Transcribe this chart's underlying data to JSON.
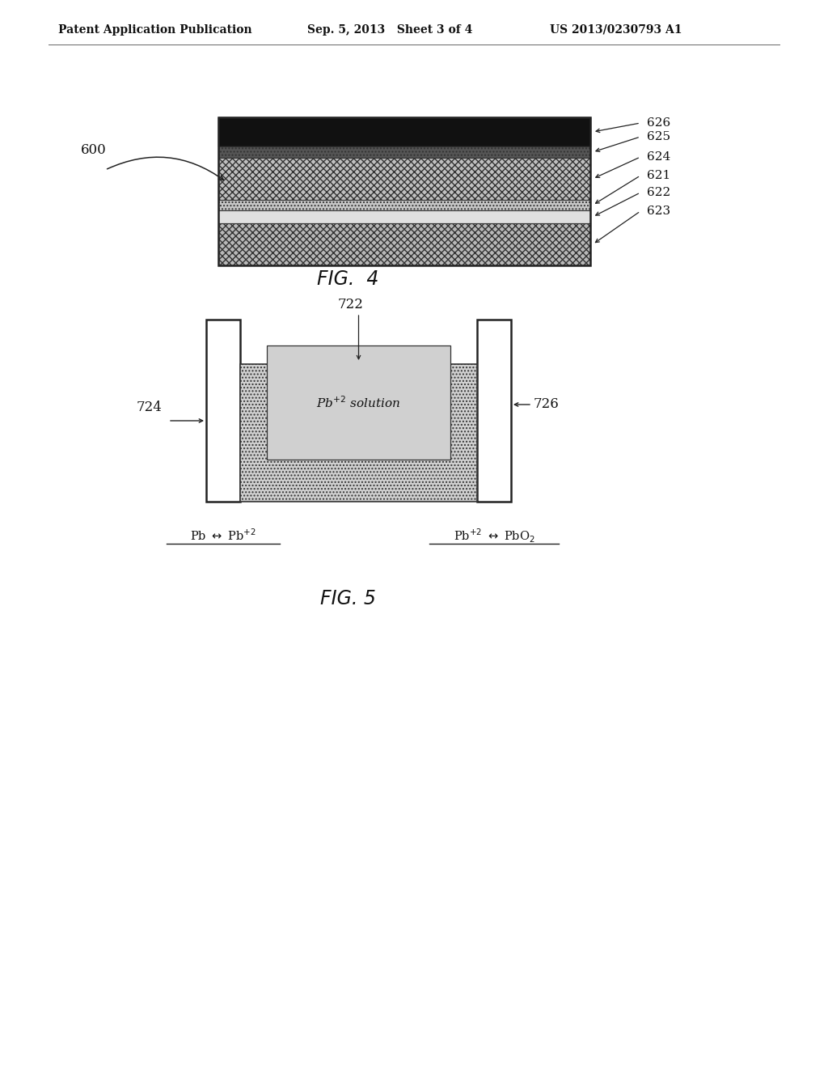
{
  "bg_color": "#ffffff",
  "header_left": "Patent Application Publication",
  "header_mid": "Sep. 5, 2013   Sheet 3 of 4",
  "header_right": "US 2013/0230793 A1",
  "fig4_label": "600",
  "fig4_caption": "FIG.  4",
  "fig5_caption": "FIG. 5",
  "fig5_label_724": "724",
  "fig5_label_726": "726",
  "fig5_label_722": "722"
}
